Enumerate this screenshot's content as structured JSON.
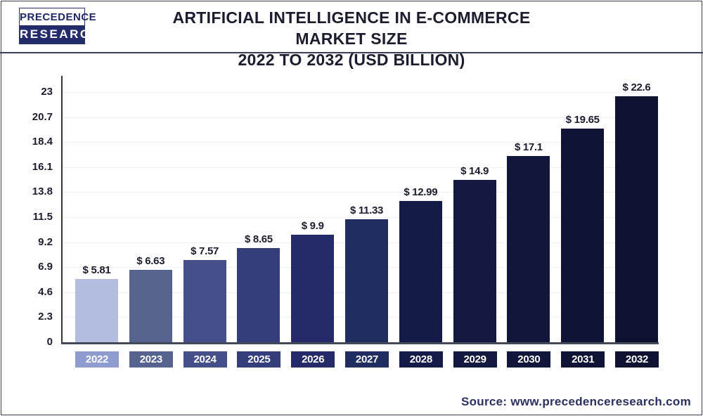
{
  "logo": {
    "line1": "PRECEDENCE",
    "line2": "RESEARCH"
  },
  "chart_data": {
    "type": "bar",
    "title": "ARTIFICIAL INTELLIGENCE IN E-COMMERCE MARKET SIZE",
    "subtitle": "2022 TO 2032 (USD BILLION)",
    "categories": [
      "2022",
      "2023",
      "2024",
      "2025",
      "2026",
      "2027",
      "2028",
      "2029",
      "2030",
      "2031",
      "2032"
    ],
    "values": [
      5.81,
      6.63,
      7.57,
      8.65,
      9.9,
      11.33,
      12.99,
      14.9,
      17.1,
      19.65,
      22.6
    ],
    "data_labels": [
      "$ 5.81",
      "$ 6.63",
      "$ 7.57",
      "$ 8.65",
      "$ 9.9",
      "$ 11.33",
      "$ 12.99",
      "$ 14.9",
      "$ 17.1",
      "$ 19.65",
      "$ 22.6"
    ],
    "yticks": [
      "0",
      "2.3",
      "4.6",
      "6.9",
      "9.2",
      "11.5",
      "13.8",
      "16.1",
      "18.4",
      "20.7",
      "23"
    ],
    "ylim": [
      0,
      23
    ],
    "grid": true,
    "xlabel": "",
    "ylabel": "",
    "bar_colors": [
      "#b3bde0",
      "#56638f",
      "#45508a",
      "#343e7b",
      "#252b68",
      "#1f2e5f",
      "#151b48",
      "#14193f",
      "#11163b",
      "#0f1335",
      "#0e1230"
    ],
    "label_colors": [
      "#8e9cd0",
      "#56638f",
      "#45508a",
      "#343e7b",
      "#252b68",
      "#1f2e5f",
      "#151b48",
      "#14193f",
      "#11163b",
      "#0f1335",
      "#0e1230"
    ]
  },
  "source": "Source: www.precedenceresearch.com"
}
